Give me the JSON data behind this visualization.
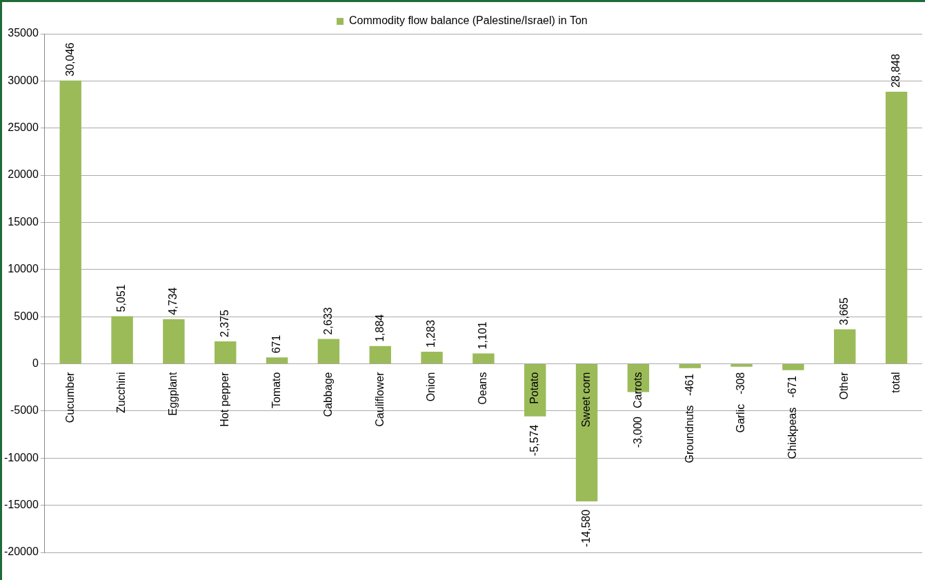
{
  "chart_data": {
    "type": "bar",
    "categories": [
      "Cucumber",
      "Zucchini",
      "Eggplant",
      "Hot pepper",
      "Tomato",
      "Cabbage",
      "Cauliflower",
      "Onion",
      "Oeans",
      "Potato",
      "Sweet corn",
      "Carrots",
      "Groundnuts",
      "Garlic",
      "Chickpeas",
      "Other",
      "total"
    ],
    "series": [
      {
        "name": "Commodity flow balance (Palestine/Israel) in Ton",
        "color": "#9bbb59",
        "values": [
          30046,
          5051,
          4734,
          2375,
          671,
          2633,
          1884,
          1283,
          1101,
          -5574,
          -14580,
          -3000,
          -461,
          -308,
          -671,
          3665,
          28848
        ],
        "value_labels": [
          "30,046",
          "5,051",
          "4,734",
          "2,375",
          "671",
          "2,633",
          "1,884",
          "1,283",
          "1,101",
          "-5,574",
          "-14,580",
          "-3,000",
          "-461",
          "-308",
          "-671",
          "3,665",
          "28,848"
        ]
      }
    ],
    "ylim": [
      -20000,
      35000
    ],
    "yticks": [
      -20000,
      -15000,
      -10000,
      -5000,
      0,
      5000,
      10000,
      15000,
      20000,
      25000,
      30000,
      35000
    ],
    "grid": "y",
    "legend": "top"
  }
}
